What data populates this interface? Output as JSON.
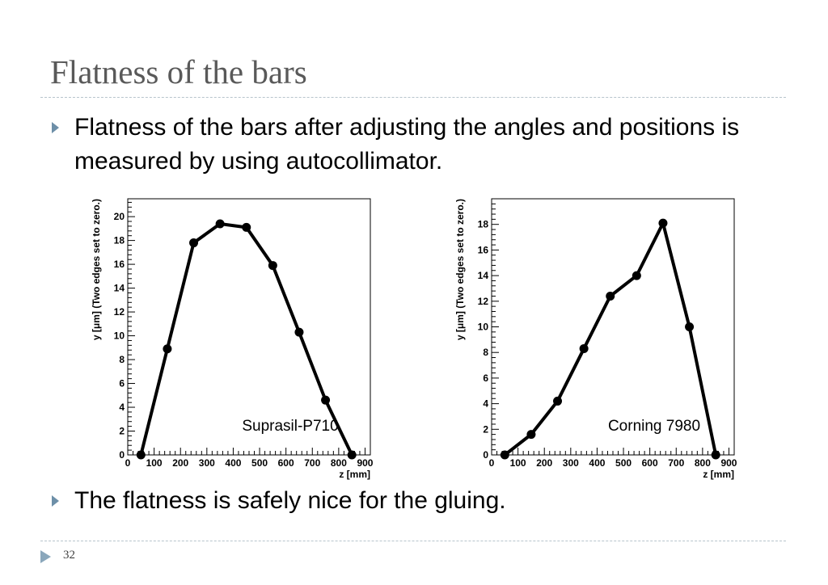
{
  "slide": {
    "title": "Flatness of the bars",
    "bullet1": "Flatness of the bars after adjusting the angles and positions is measured by using autocollimator.",
    "bullet2": "The flatness is safely nice for the gluing.",
    "page_number": "32"
  },
  "chart_data": [
    {
      "type": "line",
      "annotation": "Suprasil-P710",
      "xlabel": "z [mm]",
      "ylabel": "y [μm] (Two edges set to zero.)",
      "xlim": [
        0,
        920
      ],
      "ylim": [
        0,
        21.5
      ],
      "x_ticks": [
        0,
        100,
        200,
        300,
        400,
        500,
        600,
        700,
        800,
        900
      ],
      "y_ticks": [
        0,
        2,
        4,
        6,
        8,
        10,
        12,
        14,
        16,
        18,
        20
      ],
      "x": [
        50,
        150,
        250,
        350,
        450,
        550,
        650,
        750,
        850
      ],
      "y": [
        0,
        8.9,
        17.8,
        19.4,
        19.1,
        15.9,
        10.3,
        4.6,
        0
      ],
      "grid": false
    },
    {
      "type": "line",
      "annotation": "Corning 7980",
      "xlabel": "z [mm]",
      "ylabel": "y [μm] (Two edges set to zero.)",
      "xlim": [
        0,
        920
      ],
      "ylim": [
        0,
        20
      ],
      "x_ticks": [
        0,
        100,
        200,
        300,
        400,
        500,
        600,
        700,
        800,
        900
      ],
      "y_ticks": [
        0,
        2,
        4,
        6,
        8,
        10,
        12,
        14,
        16,
        18
      ],
      "x": [
        50,
        150,
        250,
        350,
        450,
        550,
        650,
        750,
        850
      ],
      "y": [
        0,
        1.6,
        4.2,
        8.3,
        12.4,
        14.0,
        18.1,
        10.0,
        0
      ],
      "grid": false
    }
  ]
}
